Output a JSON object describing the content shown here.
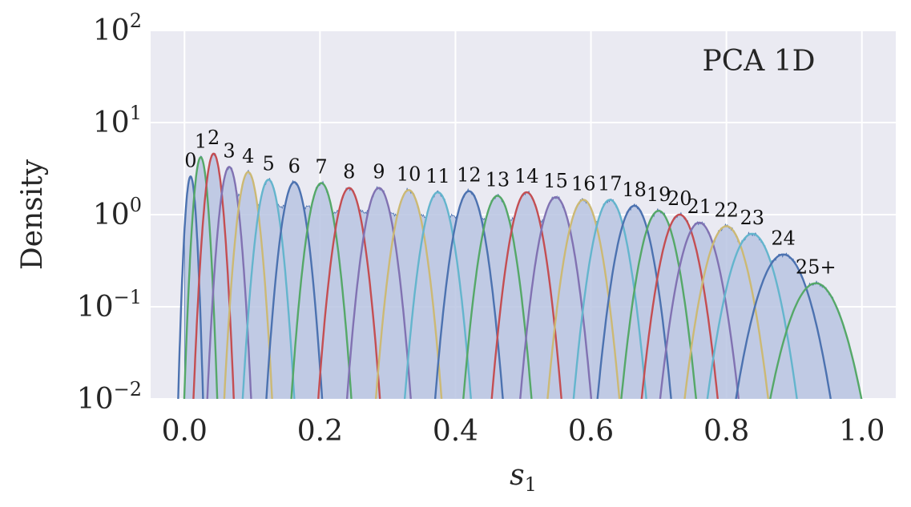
{
  "chart_data": {
    "type": "line",
    "title": "",
    "annotation": "PCA 1D",
    "xlabel": "s",
    "xlabel_sub": "1",
    "ylabel": "Density",
    "xlim": [
      -0.05,
      1.05
    ],
    "ylim": [
      0.01,
      100
    ],
    "yscale": "log",
    "grid": true,
    "x_ticks": [
      {
        "v": 0.0,
        "label": "0.0"
      },
      {
        "v": 0.2,
        "label": "0.2"
      },
      {
        "v": 0.4,
        "label": "0.4"
      },
      {
        "v": 0.6,
        "label": "0.6"
      },
      {
        "v": 0.8,
        "label": "0.8"
      },
      {
        "v": 1.0,
        "label": "1.0"
      }
    ],
    "y_ticks": [
      {
        "v": 0.01,
        "base": "10",
        "exp": "−2"
      },
      {
        "v": 0.1,
        "base": "10",
        "exp": "−1"
      },
      {
        "v": 1,
        "base": "10",
        "exp": "0"
      },
      {
        "v": 10,
        "base": "10",
        "exp": "1"
      },
      {
        "v": 100,
        "base": "10",
        "exp": "2"
      }
    ],
    "palette": [
      "#4c72b0",
      "#55a868",
      "#c44e52",
      "#8172b2",
      "#ccb974",
      "#64b5cd"
    ],
    "fill_color": "#b8c4e2",
    "fill_edge_color": "#4c72b0",
    "series": [
      {
        "label": "0",
        "mu": 0.009,
        "peak": 2.6,
        "sigma": 0.0055,
        "color": "#4c72b0"
      },
      {
        "label": "1",
        "mu": 0.024,
        "peak": 4.2,
        "sigma": 0.007,
        "color": "#55a868"
      },
      {
        "label": "2",
        "mu": 0.043,
        "peak": 4.6,
        "sigma": 0.0085,
        "color": "#c44e52"
      },
      {
        "label": "3",
        "mu": 0.066,
        "peak": 3.3,
        "sigma": 0.0095,
        "color": "#8172b2"
      },
      {
        "label": "4",
        "mu": 0.094,
        "peak": 2.9,
        "sigma": 0.0105,
        "color": "#ccb974"
      },
      {
        "label": "5",
        "mu": 0.124,
        "peak": 2.4,
        "sigma": 0.0115,
        "color": "#64b5cd"
      },
      {
        "label": "6",
        "mu": 0.162,
        "peak": 2.25,
        "sigma": 0.0125,
        "color": "#4c72b0"
      },
      {
        "label": "7",
        "mu": 0.202,
        "peak": 2.2,
        "sigma": 0.0135,
        "color": "#55a868"
      },
      {
        "label": "8",
        "mu": 0.243,
        "peak": 1.95,
        "sigma": 0.014,
        "color": "#c44e52"
      },
      {
        "label": "9",
        "mu": 0.287,
        "peak": 1.95,
        "sigma": 0.0145,
        "color": "#8172b2"
      },
      {
        "label": "10",
        "mu": 0.331,
        "peak": 1.85,
        "sigma": 0.015,
        "color": "#ccb974"
      },
      {
        "label": "11",
        "mu": 0.374,
        "peak": 1.75,
        "sigma": 0.0152,
        "color": "#64b5cd"
      },
      {
        "label": "12",
        "mu": 0.42,
        "peak": 1.8,
        "sigma": 0.0155,
        "color": "#4c72b0"
      },
      {
        "label": "13",
        "mu": 0.462,
        "peak": 1.6,
        "sigma": 0.0158,
        "color": "#55a868"
      },
      {
        "label": "14",
        "mu": 0.505,
        "peak": 1.75,
        "sigma": 0.016,
        "color": "#c44e52"
      },
      {
        "label": "15",
        "mu": 0.548,
        "peak": 1.55,
        "sigma": 0.0165,
        "color": "#8172b2"
      },
      {
        "label": "16",
        "mu": 0.589,
        "peak": 1.45,
        "sigma": 0.0168,
        "color": "#ccb974"
      },
      {
        "label": "17",
        "mu": 0.628,
        "peak": 1.45,
        "sigma": 0.017,
        "color": "#64b5cd"
      },
      {
        "label": "18",
        "mu": 0.664,
        "peak": 1.25,
        "sigma": 0.0175,
        "color": "#4c72b0"
      },
      {
        "label": "19",
        "mu": 0.7,
        "peak": 1.1,
        "sigma": 0.018,
        "color": "#55a868"
      },
      {
        "label": "20",
        "mu": 0.731,
        "peak": 1.0,
        "sigma": 0.0185,
        "color": "#c44e52"
      },
      {
        "label": "21",
        "mu": 0.76,
        "peak": 0.82,
        "sigma": 0.0195,
        "color": "#8172b2"
      },
      {
        "label": "22",
        "mu": 0.8,
        "peak": 0.75,
        "sigma": 0.021,
        "color": "#ccb974"
      },
      {
        "label": "23",
        "mu": 0.838,
        "peak": 0.62,
        "sigma": 0.023,
        "color": "#64b5cd"
      },
      {
        "label": "24",
        "mu": 0.884,
        "peak": 0.37,
        "sigma": 0.026,
        "color": "#4c72b0"
      },
      {
        "label": "25+",
        "mu": 0.932,
        "peak": 0.18,
        "sigma": 0.028,
        "color": "#55a868"
      }
    ]
  }
}
